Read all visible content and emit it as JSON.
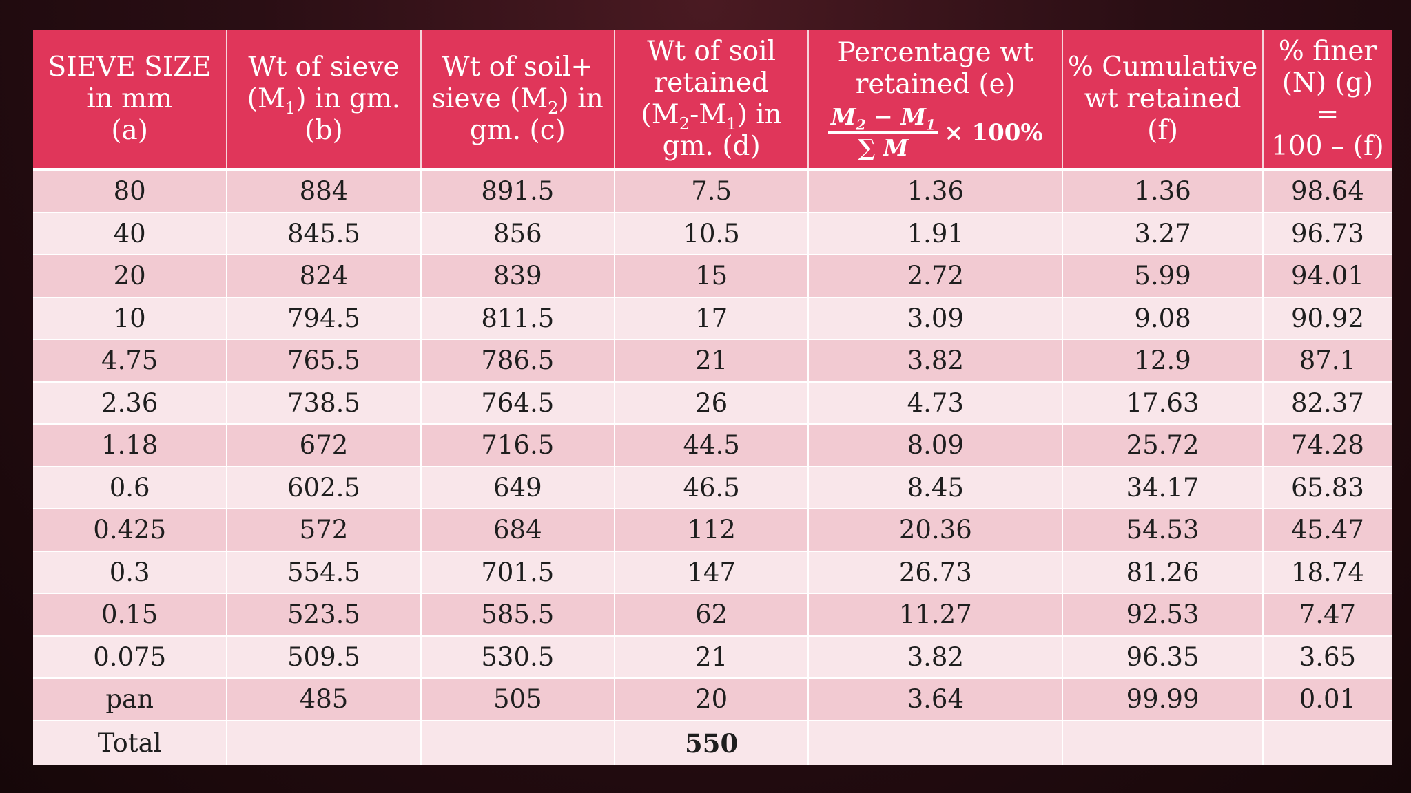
{
  "table": {
    "headers": [
      {
        "lines": [
          "SIEVE SIZE",
          "in mm",
          "(a)"
        ]
      },
      {
        "lines": [
          "Wt of sieve",
          "(M1) in gm.",
          "(b)"
        ]
      },
      {
        "lines": [
          "Wt of soil+",
          "sieve (M2) in",
          "gm. (c)"
        ]
      },
      {
        "lines": [
          "Wt of soil",
          "retained",
          "(M2-M1) in",
          "gm. (d)"
        ]
      },
      {
        "lines": [
          "Percentage wt",
          "retained (e)"
        ],
        "formula": {
          "numerator": "M2 − M1",
          "denominator": "∑ M",
          "multiplier": "× 100%"
        }
      },
      {
        "lines": [
          "% Cumulative",
          "wt retained (f)"
        ]
      },
      {
        "lines": [
          "% finer",
          "(N) (g) =",
          "100 – (f)"
        ]
      }
    ],
    "rows": [
      [
        "80",
        "884",
        "891.5",
        "7.5",
        "1.36",
        "1.36",
        "98.64"
      ],
      [
        "40",
        "845.5",
        "856",
        "10.5",
        "1.91",
        "3.27",
        "96.73"
      ],
      [
        "20",
        "824",
        "839",
        "15",
        "2.72",
        "5.99",
        "94.01"
      ],
      [
        "10",
        "794.5",
        "811.5",
        "17",
        "3.09",
        "9.08",
        "90.92"
      ],
      [
        "4.75",
        "765.5",
        "786.5",
        "21",
        "3.82",
        "12.9",
        "87.1"
      ],
      [
        "2.36",
        "738.5",
        "764.5",
        "26",
        "4.73",
        "17.63",
        "82.37"
      ],
      [
        "1.18",
        "672",
        "716.5",
        "44.5",
        "8.09",
        "25.72",
        "74.28"
      ],
      [
        "0.6",
        "602.5",
        "649",
        "46.5",
        "8.45",
        "34.17",
        "65.83"
      ],
      [
        "0.425",
        "572",
        "684",
        "112",
        "20.36",
        "54.53",
        "45.47"
      ],
      [
        "0.3",
        "554.5",
        "701.5",
        "147",
        "26.73",
        "81.26",
        "18.74"
      ],
      [
        "0.15",
        "523.5",
        "585.5",
        "62",
        "11.27",
        "92.53",
        "7.47"
      ],
      [
        "0.075",
        "509.5",
        "530.5",
        "21",
        "3.82",
        "96.35",
        "3.65"
      ],
      [
        "pan",
        "485",
        "505",
        "20",
        "3.64",
        "99.99",
        "0.01"
      ]
    ],
    "total": {
      "label": "Total",
      "value": "550"
    }
  },
  "colors": {
    "header_bg": "#e0365a",
    "row_odd": "#f2cad2",
    "row_even": "#f9e6ea",
    "background": "#2a0e14"
  }
}
